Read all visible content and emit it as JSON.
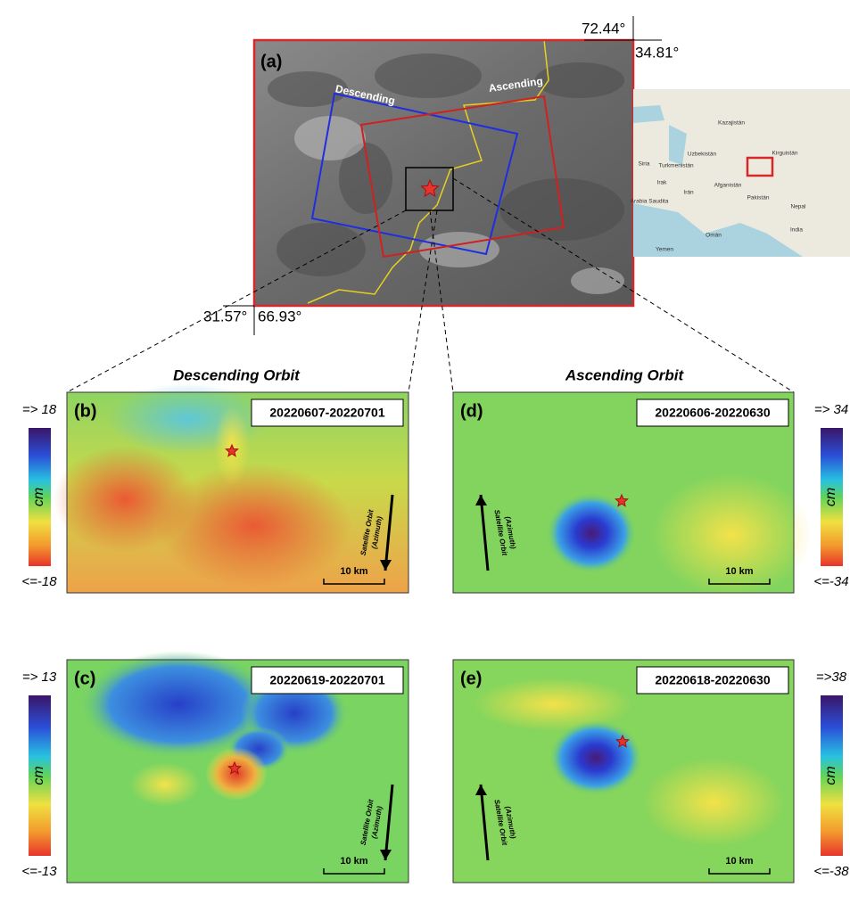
{
  "overview": {
    "label": "(a)",
    "lon_east": "72.44°",
    "lat_north": "34.81°",
    "lat_south": "31.57°",
    "lon_west": "66.93°",
    "descending": "Descending",
    "ascending": "Ascending"
  },
  "inset": {
    "labels": [
      "Kazajistán",
      "Uzbekistán",
      "Turkmenistán",
      "Kirguistán",
      "Siria",
      "Irak",
      "Irán",
      "Afganistán",
      "Pakistán",
      "Nepal",
      "India",
      "Arabia Saudita",
      "Omán",
      "Yemen"
    ]
  },
  "columns": [
    "Descending Orbit",
    "Ascending Orbit"
  ],
  "panels": [
    {
      "label": "(b)",
      "dates": "20220607-20220701",
      "colorbar": {
        "max": "=> 18",
        "unit": "cm",
        "min": "<=-18"
      },
      "orbit": [
        "Satellite Orbit",
        "(Azimuth)"
      ],
      "scale": "10 km"
    },
    {
      "label": "(c)",
      "dates": "20220619-20220701",
      "colorbar": {
        "max": "=> 13",
        "unit": "cm",
        "min": "<=-13"
      },
      "orbit": [
        "Satellite Orbit",
        "(Azimuth)"
      ],
      "scale": "10 km"
    },
    {
      "label": "(d)",
      "dates": "20220606-20220630",
      "colorbar": {
        "max": "=> 34",
        "unit": "cm",
        "min": "<=-34"
      },
      "orbit": [
        "Satellite Orbit",
        "(Azimuth)"
      ],
      "scale": "10 km"
    },
    {
      "label": "(e)",
      "dates": "20220618-20220630",
      "colorbar": {
        "max": "=>38",
        "unit": "cm",
        "min": "<=-38"
      },
      "orbit": [
        "Satellite Orbit",
        "(Azimuth)"
      ],
      "scale": "10 km"
    }
  ]
}
